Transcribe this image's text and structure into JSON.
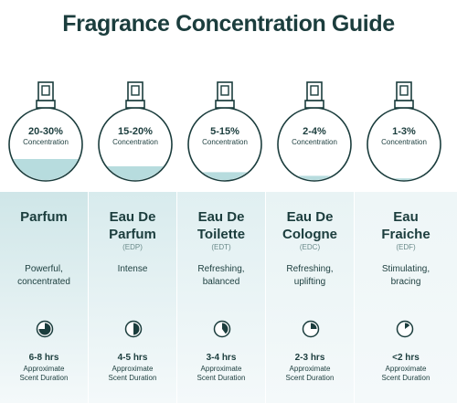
{
  "title": "Fragrance Concentration Guide",
  "colors": {
    "title": "#1b3d3d",
    "liquid": "#b7dcde",
    "panel_start": "#cfe6e8",
    "panel_end": "#eef6f7"
  },
  "concentration_label": "Concentration",
  "approx_label_line1": "Approximate",
  "approx_label_line2": "Scent Duration",
  "types": [
    {
      "pct": "20-30%",
      "fill": 0.3,
      "name_lines": [
        "Parfum"
      ],
      "abbr": "",
      "desc_lines": [
        "Powerful,",
        "concentrated"
      ],
      "duration": "6-8 hrs",
      "clock_fraction": 0.75,
      "icon": "clock-icon"
    },
    {
      "pct": "15-20%",
      "fill": 0.2,
      "name_lines": [
        "Eau De",
        "Parfum"
      ],
      "abbr": "(EDP)",
      "desc_lines": [
        "Intense"
      ],
      "duration": "4-5 hrs",
      "clock_fraction": 0.5,
      "icon": "clock-icon"
    },
    {
      "pct": "5-15%",
      "fill": 0.12,
      "name_lines": [
        "Eau De",
        "Toilette"
      ],
      "abbr": "(EDT)",
      "desc_lines": [
        "Refreshing,",
        "balanced"
      ],
      "duration": "3-4 hrs",
      "clock_fraction": 0.4,
      "icon": "clock-icon"
    },
    {
      "pct": "2-4%",
      "fill": 0.07,
      "name_lines": [
        "Eau De",
        "Cologne"
      ],
      "abbr": "(EDC)",
      "desc_lines": [
        "Refreshing,",
        "uplifting"
      ],
      "duration": "2-3 hrs",
      "clock_fraction": 0.25,
      "icon": "clock-icon"
    },
    {
      "pct": "1-3%",
      "fill": 0.035,
      "name_lines": [
        "Eau",
        "Fraiche"
      ],
      "abbr": "(EDF)",
      "desc_lines": [
        "Stimulating,",
        "bracing"
      ],
      "duration": "<2 hrs",
      "clock_fraction": 0.15,
      "icon": "clock-icon"
    }
  ]
}
